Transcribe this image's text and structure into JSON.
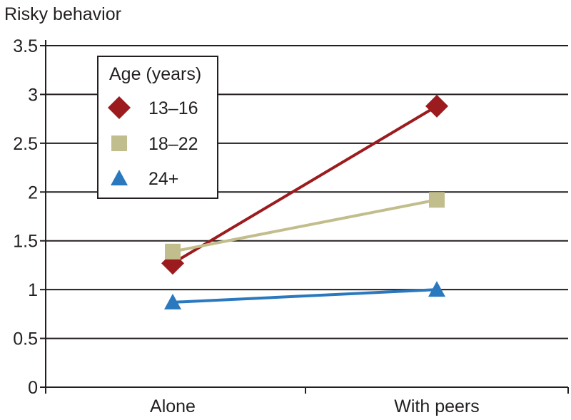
{
  "chart_data": {
    "type": "line",
    "ylabel": "Risky behavior",
    "xlabel": "",
    "title": "",
    "categories": [
      "Alone",
      "With peers"
    ],
    "ylim": [
      0,
      3.5
    ],
    "yticks": [
      "0",
      "0.5",
      "1",
      "1.5",
      "2",
      "2.5",
      "3",
      "3.5"
    ],
    "grid": "horizontal",
    "legend": {
      "title": "Age (years)",
      "placement": "top-left"
    },
    "series": [
      {
        "name": "13–16",
        "values": [
          1.27,
          2.88
        ],
        "color": "#9b1b1e",
        "marker": "diamond"
      },
      {
        "name": "18–22",
        "values": [
          1.39,
          1.92
        ],
        "color": "#c2bd8c",
        "marker": "square"
      },
      {
        "name": "24+",
        "values": [
          0.87,
          1.0
        ],
        "color": "#2a78bd",
        "marker": "triangle"
      }
    ]
  }
}
